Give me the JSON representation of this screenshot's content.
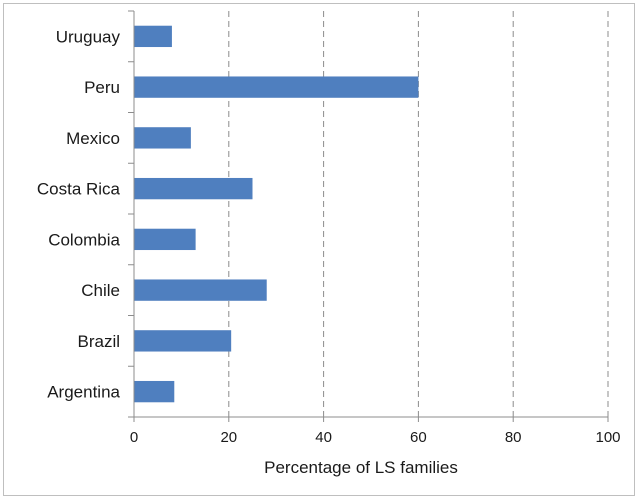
{
  "chart_data": {
    "type": "bar",
    "orientation": "horizontal",
    "categories": [
      "Uruguay",
      "Peru",
      "Mexico",
      "Costa Rica",
      "Colombia",
      "Chile",
      "Brazil",
      "Argentina"
    ],
    "values": [
      8,
      60,
      12,
      25,
      13,
      28,
      20.5,
      8.5
    ],
    "xlabel": "Percentage of LS families",
    "ylabel": "",
    "xlim": [
      0,
      100
    ],
    "xticks": [
      0,
      20,
      40,
      60,
      80,
      100
    ],
    "grid": "vertical-dashed",
    "legend": "none",
    "bar_color": "#4f7fbf"
  }
}
